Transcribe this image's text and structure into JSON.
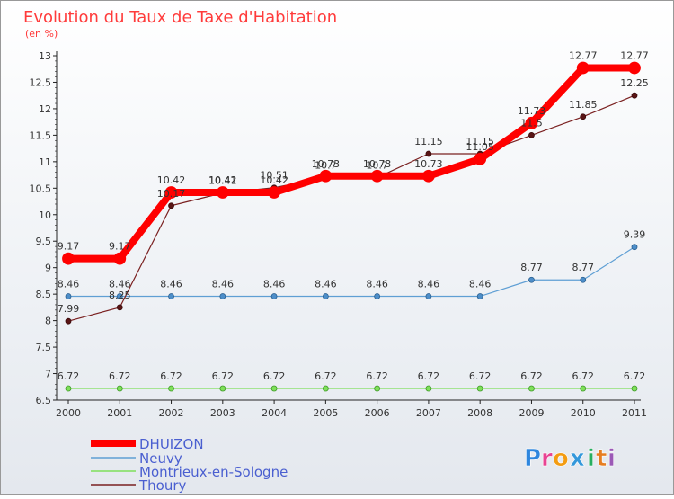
{
  "chart_data": {
    "type": "line",
    "title": "Evolution du Taux de Taxe d'Habitation",
    "subtitle": "(en %)",
    "categories": [
      "2000",
      "2001",
      "2002",
      "2003",
      "2004",
      "2005",
      "2006",
      "2007",
      "2008",
      "2009",
      "2010",
      "2011"
    ],
    "ylim": [
      6.5,
      13
    ],
    "yticks": [
      "6.5",
      "7",
      "7.5",
      "8",
      "8.5",
      "9",
      "9.5",
      "10",
      "10.5",
      "11",
      "11.5",
      "12",
      "12.5",
      "13"
    ],
    "grid": false,
    "legend_position": "bottom-left",
    "series": [
      {
        "name": "DHUIZON",
        "color": "#ff0000",
        "values": [
          9.17,
          9.17,
          10.42,
          10.42,
          10.42,
          10.73,
          10.73,
          10.73,
          11.05,
          11.73,
          12.77,
          12.77
        ],
        "labels": [
          "9.17",
          "9.17",
          "10.42",
          "10.42",
          "10.42",
          "10.73",
          "10.73",
          "10.73",
          "11.05",
          "11.73",
          "12.77",
          "12.77"
        ]
      },
      {
        "name": "Neuvy",
        "color": "#5f9fd4",
        "values": [
          8.46,
          8.46,
          8.46,
          8.46,
          8.46,
          8.46,
          8.46,
          8.46,
          8.46,
          8.77,
          8.77,
          9.39
        ],
        "labels": [
          "8.46",
          "8.46",
          "8.46",
          "8.46",
          "8.46",
          "8.46",
          "8.46",
          "8.46",
          "8.46",
          "8.77",
          "8.77",
          "9.39"
        ]
      },
      {
        "name": "Montrieux-en-Sologne",
        "color": "#7fe05a",
        "values": [
          6.72,
          6.72,
          6.72,
          6.72,
          6.72,
          6.72,
          6.72,
          6.72,
          6.72,
          6.72,
          6.72,
          6.72
        ],
        "labels": [
          "6.72",
          "6.72",
          "6.72",
          "6.72",
          "6.72",
          "6.72",
          "6.72",
          "6.72",
          "6.72",
          "6.72",
          "6.72",
          "6.72"
        ]
      },
      {
        "name": "Thoury",
        "color": "#7a2020",
        "values": [
          7.99,
          8.25,
          10.17,
          10.41,
          10.51,
          10.7,
          10.7,
          11.15,
          11.15,
          11.5,
          11.85,
          12.25
        ],
        "labels": [
          "7.99",
          "8.25",
          "10.17",
          "10.41",
          "10.51",
          "10.7",
          "10.7",
          "11.15",
          "11.15",
          "11.5",
          "11.85",
          "12.25"
        ]
      }
    ]
  },
  "logo": {
    "text": "Proxiti",
    "letters": [
      {
        "ch": "P",
        "color": "#2e86de"
      },
      {
        "ch": "r",
        "color": "#e84393"
      },
      {
        "ch": "o",
        "color": "#f39c12"
      },
      {
        "ch": "x",
        "color": "#3498db"
      },
      {
        "ch": "i",
        "color": "#27ae60"
      },
      {
        "ch": "t",
        "color": "#e67e22"
      },
      {
        "ch": "i",
        "color": "#9b59b6"
      }
    ]
  }
}
